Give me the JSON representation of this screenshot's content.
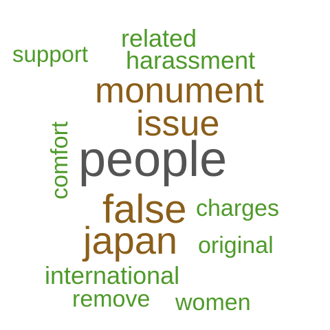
{
  "colors": {
    "green": "#4e9a2a",
    "brown": "#8b5e1a",
    "grey": "#545454"
  },
  "words": {
    "people": "people",
    "monument": "monument",
    "issue": "issue",
    "false": "false",
    "japan": "japan",
    "support": "support",
    "related": "related",
    "harassment": "harassment",
    "comfort": "comfort",
    "charges": "charges",
    "original": "original",
    "international": "international",
    "remove": "remove",
    "women": "women"
  }
}
